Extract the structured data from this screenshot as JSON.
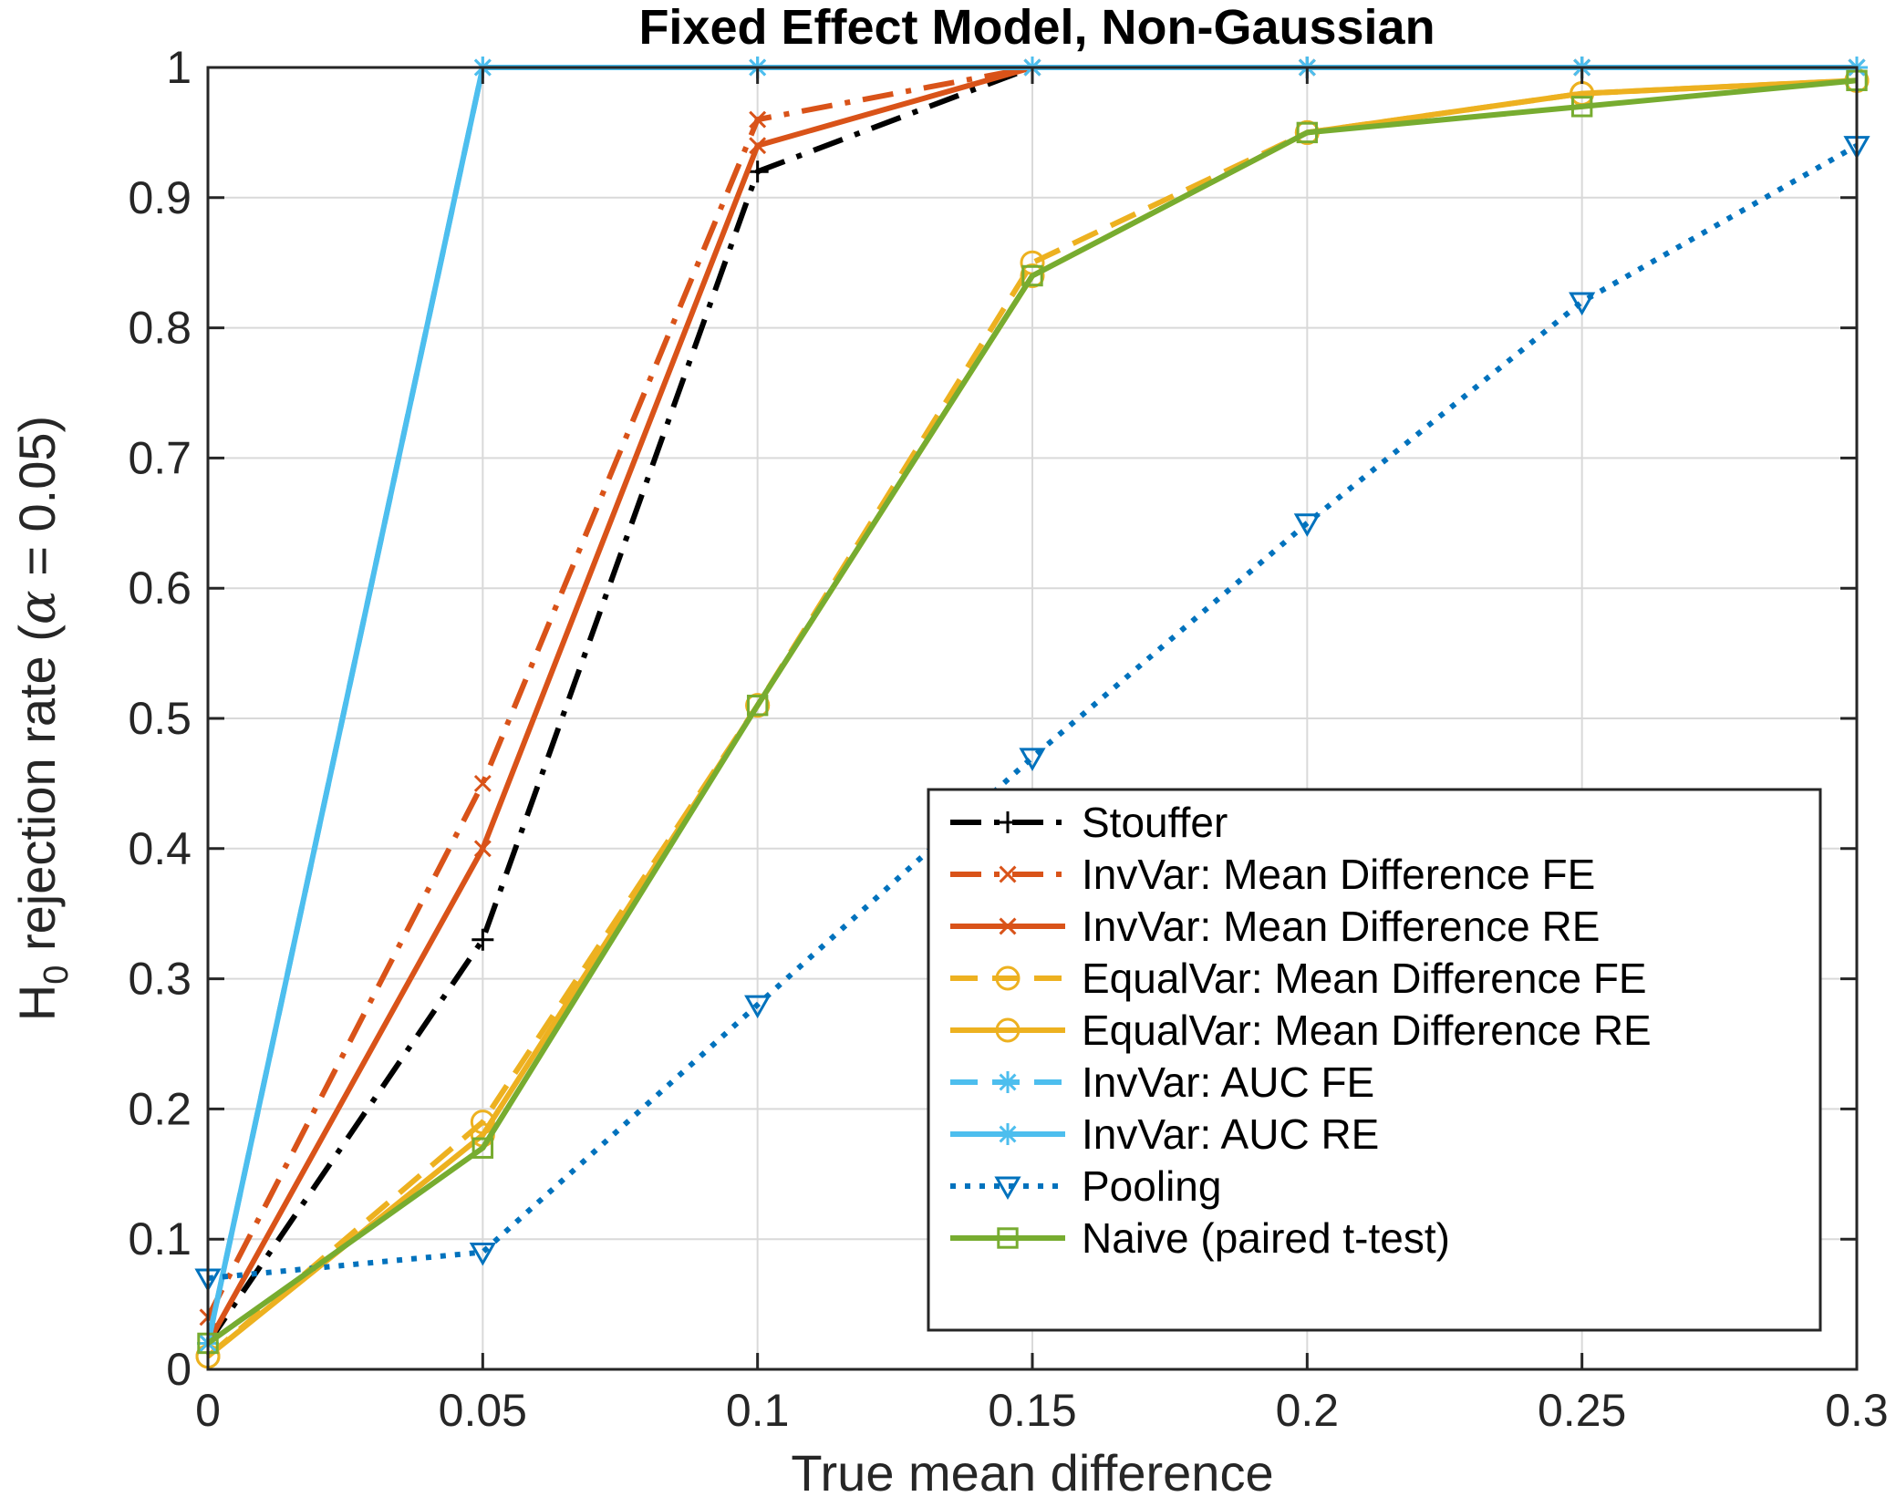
{
  "chart_data": {
    "type": "line",
    "title": "Fixed Effect Model, Non-Gaussian",
    "xlabel": "True mean difference",
    "ylabel": {
      "prefix": "H",
      "sub": "0",
      "text": " rejection rate (",
      "symbol": "α",
      "suffix": " = 0.05)"
    },
    "x": [
      0,
      0.05,
      0.1,
      0.15,
      0.2,
      0.25,
      0.3
    ],
    "xlim": [
      0,
      0.3
    ],
    "ylim": [
      0,
      1
    ],
    "xticks": [
      "0",
      "0.05",
      "0.1",
      "0.15",
      "0.2",
      "0.25",
      "0.3"
    ],
    "yticks": [
      "0",
      "0.1",
      "0.2",
      "0.3",
      "0.4",
      "0.5",
      "0.6",
      "0.7",
      "0.8",
      "0.9",
      "1"
    ],
    "grid": true,
    "legend_position": "bottom-right",
    "series": [
      {
        "name": "Stouffer",
        "color": "#000000",
        "dash": "dashdot",
        "marker": "plus",
        "values": [
          0.02,
          0.33,
          0.92,
          1.0,
          1.0,
          1.0,
          1.0
        ]
      },
      {
        "name": "InvVar: Mean Difference FE",
        "color": "#D95319",
        "dash": "dashdot",
        "marker": "x",
        "values": [
          0.04,
          0.45,
          0.96,
          1.0,
          1.0,
          1.0,
          1.0
        ]
      },
      {
        "name": "InvVar: Mean Difference RE",
        "color": "#D95319",
        "dash": "solid",
        "marker": "x",
        "values": [
          0.02,
          0.4,
          0.94,
          1.0,
          1.0,
          1.0,
          1.0
        ]
      },
      {
        "name": "EqualVar: Mean Difference FE",
        "color": "#EDB120",
        "dash": "dashed",
        "marker": "circle",
        "values": [
          0.01,
          0.19,
          0.51,
          0.85,
          0.95,
          0.98,
          0.99
        ]
      },
      {
        "name": "EqualVar: Mean Difference RE",
        "color": "#EDB120",
        "dash": "solid",
        "marker": "circle",
        "values": [
          0.01,
          0.18,
          0.51,
          0.84,
          0.95,
          0.98,
          0.99
        ]
      },
      {
        "name": "InvVar: AUC FE",
        "color": "#4DBEEE",
        "dash": "dashed",
        "marker": "star",
        "values": [
          0.02,
          1.0,
          1.0,
          1.0,
          1.0,
          1.0,
          1.0
        ]
      },
      {
        "name": "InvVar: AUC RE",
        "color": "#4DBEEE",
        "dash": "solid",
        "marker": "star",
        "values": [
          0.02,
          1.0,
          1.0,
          1.0,
          1.0,
          1.0,
          1.0
        ]
      },
      {
        "name": "Pooling",
        "color": "#0072BD",
        "dash": "dotted",
        "marker": "triangle-down",
        "values": [
          0.07,
          0.09,
          0.28,
          0.47,
          0.65,
          0.82,
          0.94
        ]
      },
      {
        "name": "Naive (paired t-test)",
        "color": "#77AC30",
        "dash": "solid",
        "marker": "square",
        "values": [
          0.02,
          0.17,
          0.51,
          0.84,
          0.95,
          0.97,
          0.99
        ]
      }
    ]
  }
}
